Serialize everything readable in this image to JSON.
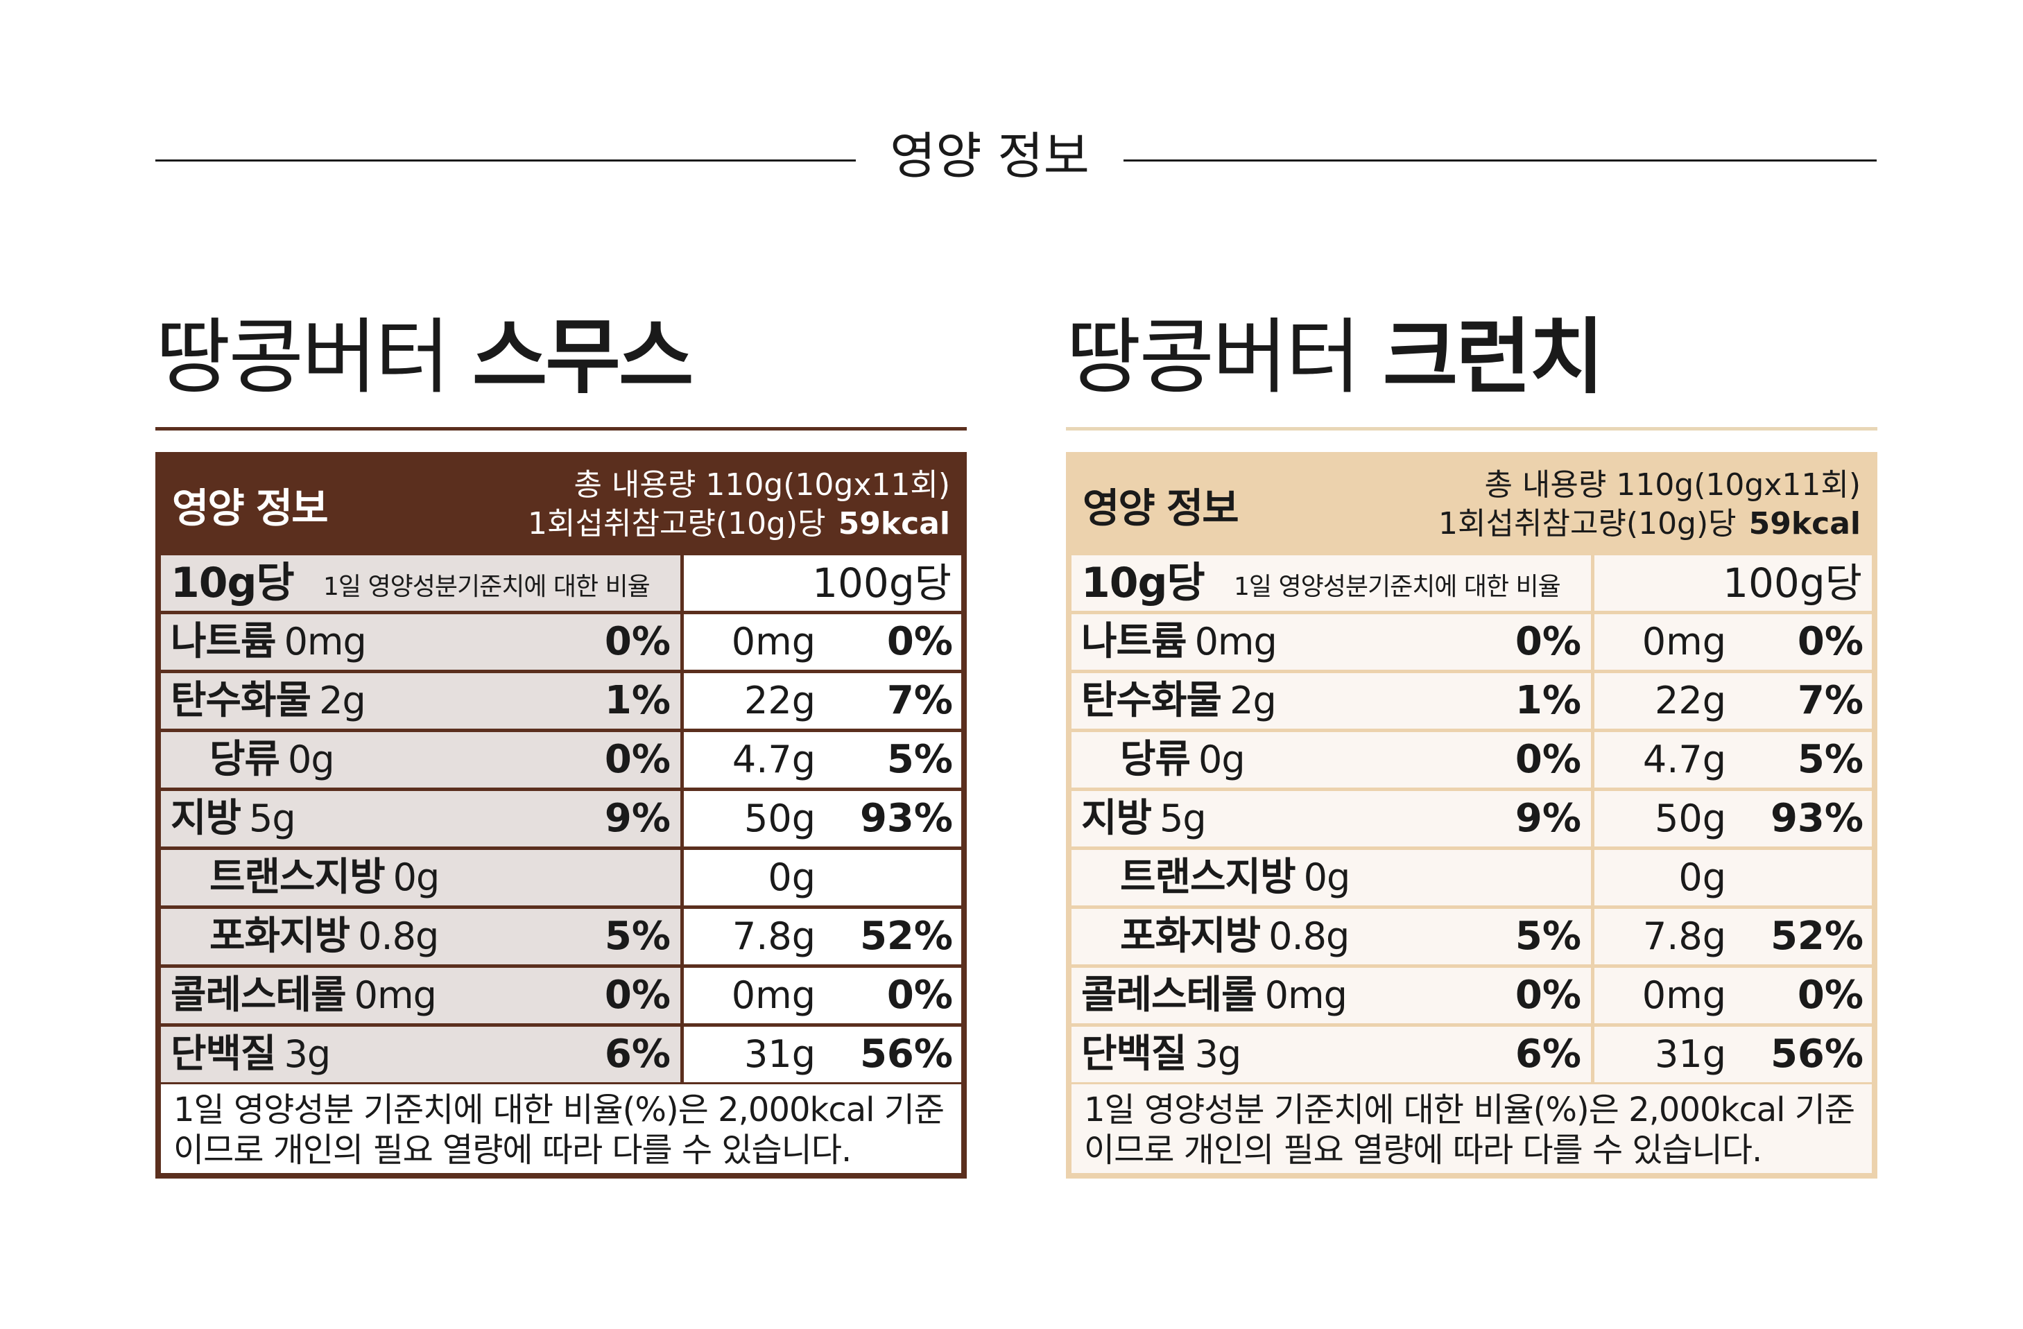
{
  "page_title": "영양 정보",
  "products": [
    {
      "name_light": "땅콩버터",
      "name_bold": "스무스",
      "theme": "brown",
      "panel": {
        "title": "영양 정보",
        "total_content": "총 내용량 110g(10gx11회)",
        "serving_ref": "1회섭취참고량(10g)당",
        "kcal": "59kcal",
        "per10_label": "10g당",
        "dv_label": "1일 영양성분기준치에 대한 비율",
        "per100_label": "100g당",
        "rows": [
          {
            "name": "나트륨",
            "amount": "0mg",
            "pct": "0%",
            "amount100": "0mg",
            "pct100": "0%",
            "indent": false
          },
          {
            "name": "탄수화물",
            "amount": "2g",
            "pct": "1%",
            "amount100": "22g",
            "pct100": "7%",
            "indent": false
          },
          {
            "name": "당류",
            "amount": "0g",
            "pct": "0%",
            "amount100": "4.7g",
            "pct100": "5%",
            "indent": true
          },
          {
            "name": "지방",
            "amount": "5g",
            "pct": "9%",
            "amount100": "50g",
            "pct100": "93%",
            "indent": false
          },
          {
            "name": "트랜스지방",
            "amount": "0g",
            "pct": "",
            "amount100": "0g",
            "pct100": "",
            "indent": true
          },
          {
            "name": "포화지방",
            "amount": "0.8g",
            "pct": "5%",
            "amount100": "7.8g",
            "pct100": "52%",
            "indent": true
          },
          {
            "name": "콜레스테롤",
            "amount": "0mg",
            "pct": "0%",
            "amount100": "0mg",
            "pct100": "0%",
            "indent": false
          },
          {
            "name": "단백질",
            "amount": "3g",
            "pct": "6%",
            "amount100": "31g",
            "pct100": "56%",
            "indent": false
          }
        ],
        "footnote_line1": "1일 영양성분 기준치에 대한 비율(%)은 2,000kcal 기준",
        "footnote_line2": "이므로 개인의 필요 열량에 따라 다를 수 있습니다."
      }
    },
    {
      "name_light": "땅콩버터",
      "name_bold": "크런치",
      "theme": "tan",
      "panel": {
        "title": "영양 정보",
        "total_content": "총 내용량 110g(10gx11회)",
        "serving_ref": "1회섭취참고량(10g)당",
        "kcal": "59kcal",
        "per10_label": "10g당",
        "dv_label": "1일 영양성분기준치에 대한 비율",
        "per100_label": "100g당",
        "rows": [
          {
            "name": "나트륨",
            "amount": "0mg",
            "pct": "0%",
            "amount100": "0mg",
            "pct100": "0%",
            "indent": false
          },
          {
            "name": "탄수화물",
            "amount": "2g",
            "pct": "1%",
            "amount100": "22g",
            "pct100": "7%",
            "indent": false
          },
          {
            "name": "당류",
            "amount": "0g",
            "pct": "0%",
            "amount100": "4.7g",
            "pct100": "5%",
            "indent": true
          },
          {
            "name": "지방",
            "amount": "5g",
            "pct": "9%",
            "amount100": "50g",
            "pct100": "93%",
            "indent": false
          },
          {
            "name": "트랜스지방",
            "amount": "0g",
            "pct": "",
            "amount100": "0g",
            "pct100": "",
            "indent": true
          },
          {
            "name": "포화지방",
            "amount": "0.8g",
            "pct": "5%",
            "amount100": "7.8g",
            "pct100": "52%",
            "indent": true
          },
          {
            "name": "콜레스테롤",
            "amount": "0mg",
            "pct": "0%",
            "amount100": "0mg",
            "pct100": "0%",
            "indent": false
          },
          {
            "name": "단백질",
            "amount": "3g",
            "pct": "6%",
            "amount100": "31g",
            "pct100": "56%",
            "indent": false
          }
        ],
        "footnote_line1": "1일 영양성분 기준치에 대한 비율(%)은 2,000kcal 기준",
        "footnote_line2": "이므로 개인의 필요 열량에 따라 다를 수 있습니다."
      }
    }
  ],
  "colors": {
    "brown": "#5b2f1e",
    "tan": "#ecd2ad",
    "brown_cell": "#e5dfdd",
    "tan_cell": "#fbf6f2"
  }
}
